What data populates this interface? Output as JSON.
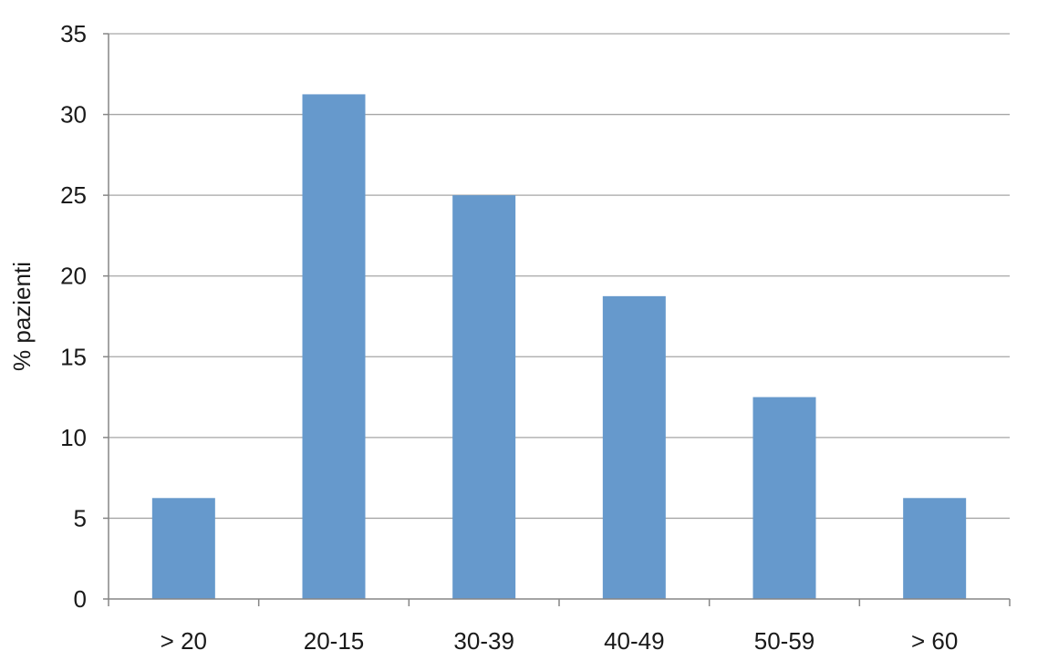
{
  "colors": {
    "bar": "#6699cc",
    "grid": "#a6a6a6",
    "axis": "#868686",
    "text": "#1a1a1a"
  },
  "chart_data": {
    "type": "bar",
    "title": "",
    "xlabel": "",
    "ylabel": "% pazienti",
    "categories": [
      "> 20",
      "20-15",
      "30-39",
      "40-49",
      "50-59",
      "> 60"
    ],
    "values": [
      6.25,
      31.25,
      25,
      18.75,
      12.5,
      6.25
    ],
    "ylim": [
      0,
      35
    ],
    "yticks": [
      0,
      5,
      10,
      15,
      20,
      25,
      30,
      35
    ],
    "grid": true,
    "legend": "none"
  }
}
